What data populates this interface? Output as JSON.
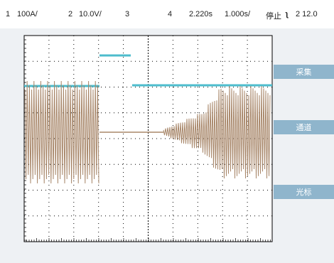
{
  "header": {
    "ch1_num": "1",
    "ch1_scale": "100A/",
    "ch2_num": "2",
    "ch2_scale": "10.0V/",
    "ch3_num": "3",
    "ch4_num": "4",
    "time_offset": "2.220s",
    "time_scale": "1.000s/",
    "run_state": "停止",
    "trigger_icon": "trigger-edge-icon",
    "trigger_level": "2 12.0"
  },
  "softkeys": [
    {
      "label": "采集"
    },
    {
      "label": "通道"
    },
    {
      "label": "光标"
    }
  ],
  "colors": {
    "background": "#ffffff",
    "panel": "#eef1f4",
    "softkey": "#8fb5cc",
    "trace_digital": "#4dbccc",
    "trace_analog": "#a8876a",
    "grid": "#000000"
  }
}
